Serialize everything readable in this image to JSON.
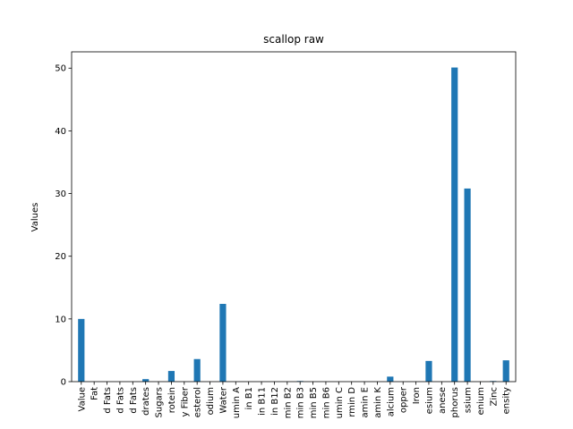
{
  "chart_data": {
    "type": "bar",
    "title": "scallop raw",
    "xlabel": "",
    "ylabel": "Values",
    "ylim": [
      0,
      52.6
    ],
    "yticks": [
      0,
      10,
      20,
      30,
      40,
      50
    ],
    "grid": false,
    "legend": "none",
    "bar_color": "#1f77b4",
    "categories": [
      "Value",
      "Fat",
      "d Fats",
      "d Fats",
      "d Fats",
      "drates",
      "Sugars",
      "rotein",
      "y Fiber",
      "esterol",
      "odium",
      "Water",
      "umin A",
      "in B1",
      "in B11",
      "in B12",
      "min B2",
      "min B3",
      "min B5",
      "min B6",
      "umin C",
      "rmin D",
      "amin E",
      "amin K",
      "alcium",
      "opper",
      "Iron",
      "esium",
      "anese",
      "phorus",
      "ssium",
      "enium",
      "Zinc",
      "ensity"
    ],
    "values": [
      10.0,
      0.0,
      0.0,
      0.0,
      0.0,
      0.4,
      0.0,
      1.7,
      0.0,
      3.6,
      0.0,
      12.4,
      0.0,
      0.0,
      0.0,
      0.0,
      0.0,
      0.1,
      0.0,
      0.0,
      0.0,
      0.0,
      0.0,
      0.0,
      0.8,
      0.0,
      0.0,
      3.3,
      0.0,
      50.1,
      30.8,
      0.0,
      0.1,
      3.4
    ]
  }
}
